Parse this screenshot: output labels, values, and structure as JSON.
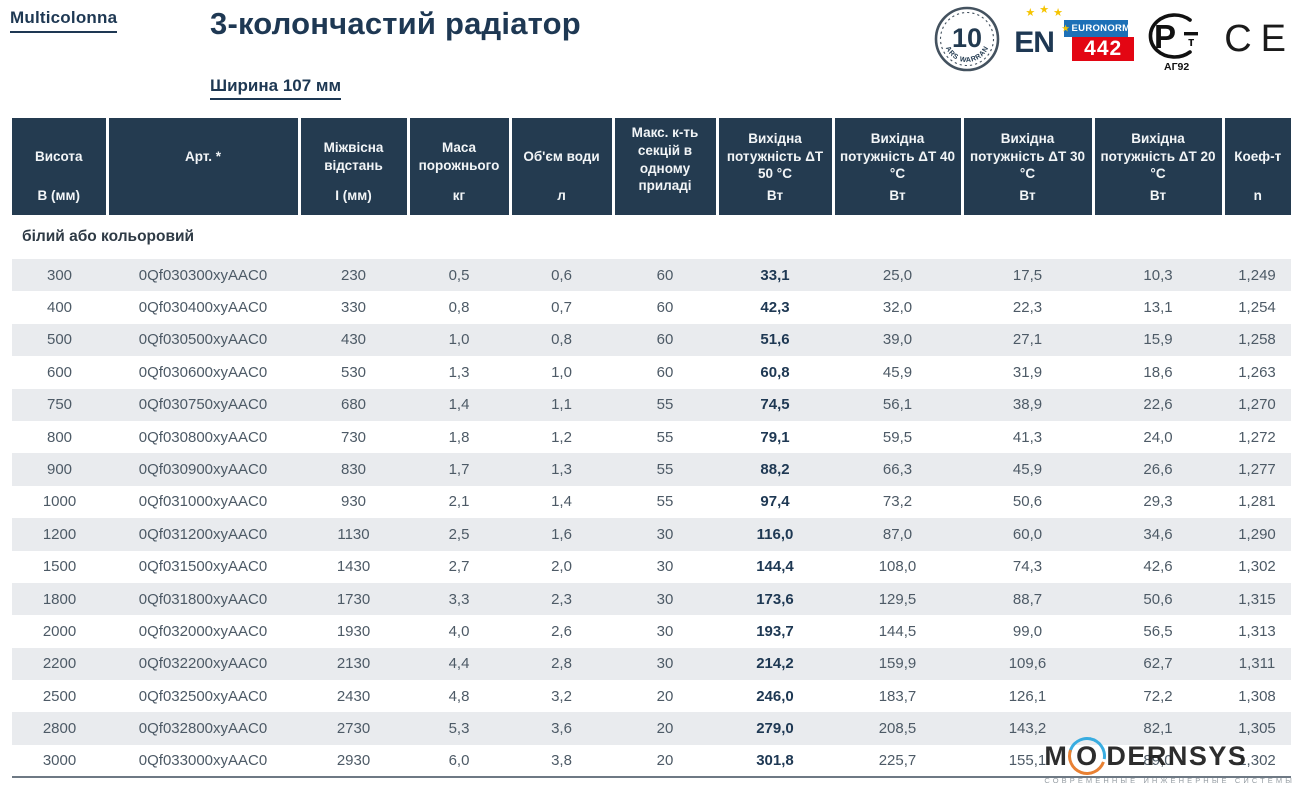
{
  "brand": "Multicolonna",
  "title": "3-колончастий радіатор",
  "subtitle": "Ширина 107 мм",
  "badges": {
    "warranty_number": "10",
    "warranty_text": "YEARS WARRANTY",
    "en": "EN",
    "euronorm": "EURONORM",
    "en_number": "442",
    "pct_letter": "P",
    "pct_small": "т",
    "pct_caption": "АГ92",
    "ce": "CE"
  },
  "table": {
    "section_label": "білий або кольоровий",
    "columns": [
      {
        "label": "Висота",
        "unit": "В (мм)"
      },
      {
        "label": "Арт. *",
        "unit": ""
      },
      {
        "label": "Міжвісна відстань",
        "unit": "І (мм)"
      },
      {
        "label": "Маса порожнього",
        "unit": "кг"
      },
      {
        "label": "Об'єм води",
        "unit": "л"
      },
      {
        "label": "Макс. к-ть секцій в одному приладі",
        "unit": ""
      },
      {
        "label": "Вихідна потужність ΔT 50 °C",
        "unit": "Вт"
      },
      {
        "label": "Вихідна потужність ΔT 40 °C",
        "unit": "Вт"
      },
      {
        "label": "Вихідна потужність ΔT 30 °C",
        "unit": "Вт"
      },
      {
        "label": "Вихідна потужність ΔT 20 °C",
        "unit": "Вт"
      },
      {
        "label": "Коеф-т",
        "unit": "n"
      }
    ],
    "rows": [
      [
        "300",
        "0Qf030300xyAAC0",
        "230",
        "0,5",
        "0,6",
        "60",
        "33,1",
        "25,0",
        "17,5",
        "10,3",
        "1,249"
      ],
      [
        "400",
        "0Qf030400xyAAC0",
        "330",
        "0,8",
        "0,7",
        "60",
        "42,3",
        "32,0",
        "22,3",
        "13,1",
        "1,254"
      ],
      [
        "500",
        "0Qf030500xyAAC0",
        "430",
        "1,0",
        "0,8",
        "60",
        "51,6",
        "39,0",
        "27,1",
        "15,9",
        "1,258"
      ],
      [
        "600",
        "0Qf030600xyAAC0",
        "530",
        "1,3",
        "1,0",
        "60",
        "60,8",
        "45,9",
        "31,9",
        "18,6",
        "1,263"
      ],
      [
        "750",
        "0Qf030750xyAAC0",
        "680",
        "1,4",
        "1,1",
        "55",
        "74,5",
        "56,1",
        "38,9",
        "22,6",
        "1,270"
      ],
      [
        "800",
        "0Qf030800xyAAC0",
        "730",
        "1,8",
        "1,2",
        "55",
        "79,1",
        "59,5",
        "41,3",
        "24,0",
        "1,272"
      ],
      [
        "900",
        "0Qf030900xyAAC0",
        "830",
        "1,7",
        "1,3",
        "55",
        "88,2",
        "66,3",
        "45,9",
        "26,6",
        "1,277"
      ],
      [
        "1000",
        "0Qf031000xyAAC0",
        "930",
        "2,1",
        "1,4",
        "55",
        "97,4",
        "73,2",
        "50,6",
        "29,3",
        "1,281"
      ],
      [
        "1200",
        "0Qf031200xyAAC0",
        "1130",
        "2,5",
        "1,6",
        "30",
        "116,0",
        "87,0",
        "60,0",
        "34,6",
        "1,290"
      ],
      [
        "1500",
        "0Qf031500xyAAC0",
        "1430",
        "2,7",
        "2,0",
        "30",
        "144,4",
        "108,0",
        "74,3",
        "42,6",
        "1,302"
      ],
      [
        "1800",
        "0Qf031800xyAAC0",
        "1730",
        "3,3",
        "2,3",
        "30",
        "173,6",
        "129,5",
        "88,7",
        "50,6",
        "1,315"
      ],
      [
        "2000",
        "0Qf032000xyAAC0",
        "1930",
        "4,0",
        "2,6",
        "30",
        "193,7",
        "144,5",
        "99,0",
        "56,5",
        "1,313"
      ],
      [
        "2200",
        "0Qf032200xyAAC0",
        "2130",
        "4,4",
        "2,8",
        "30",
        "214,2",
        "159,9",
        "109,6",
        "62,7",
        "1,311"
      ],
      [
        "2500",
        "0Qf032500xyAAC0",
        "2430",
        "4,8",
        "3,2",
        "20",
        "246,0",
        "183,7",
        "126,1",
        "72,2",
        "1,308"
      ],
      [
        "2800",
        "0Qf032800xyAAC0",
        "2730",
        "5,3",
        "3,6",
        "20",
        "279,0",
        "208,5",
        "143,2",
        "82,1",
        "1,305"
      ],
      [
        "3000",
        "0Qf033000xyAAC0",
        "2930",
        "6,0",
        "3,8",
        "20",
        "301,8",
        "225,7",
        "155,1",
        "89,0",
        "1,302"
      ]
    ]
  },
  "watermark": {
    "part1": "M",
    "part2": "O",
    "part3": "DERNSYS",
    "tagline": "СОВРЕМЕННЫЕ ИНЖЕНЕРНЫЕ СИСТЕМЫ"
  },
  "colors": {
    "navy": "#1e3853",
    "header_bg": "#243b50",
    "stripe": "#e9ebee",
    "data_text": "#4d5a66",
    "euronorm_blue": "#1d70b7",
    "badge_red": "#e30613",
    "star_gold": "#f5c400",
    "wm_blue": "#2aa7df",
    "wm_orange": "#e87722"
  }
}
